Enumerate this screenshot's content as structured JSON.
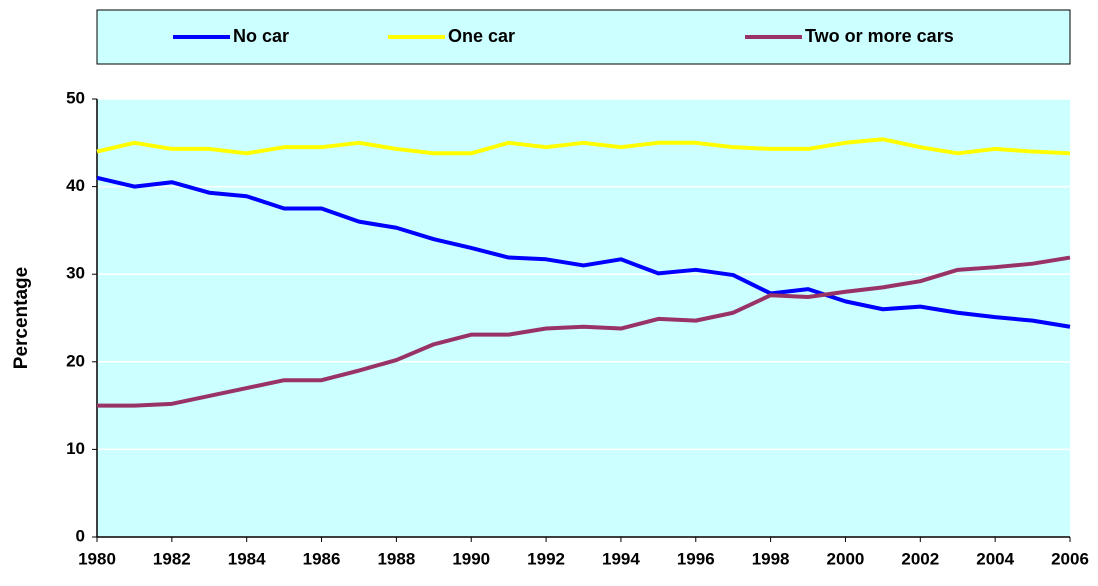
{
  "chart_data": {
    "type": "line",
    "y_label": "Percentage",
    "x": [
      1980,
      1981,
      1982,
      1983,
      1984,
      1985,
      1986,
      1987,
      1988,
      1989,
      1990,
      1991,
      1992,
      1993,
      1994,
      1995,
      1996,
      1997,
      1998,
      1999,
      2000,
      2001,
      2002,
      2003,
      2004,
      2005,
      2006
    ],
    "series": [
      {
        "name": "No car",
        "color": "#0000ff",
        "values": [
          41,
          40,
          40.5,
          39.3,
          38.9,
          37.5,
          37.5,
          36,
          35.3,
          34,
          33,
          31.9,
          31.7,
          31,
          31.7,
          30.1,
          30.5,
          29.9,
          27.8,
          28.3,
          26.9,
          26,
          26.3,
          25.6,
          25.1,
          24.7,
          24
        ]
      },
      {
        "name": "One car",
        "color": "#ffff00",
        "values": [
          44,
          45,
          44.3,
          44.3,
          43.8,
          44.5,
          44.5,
          45,
          44.3,
          43.8,
          43.8,
          45,
          44.5,
          45,
          44.5,
          45,
          45,
          44.5,
          44.3,
          44.3,
          45,
          45.4,
          44.5,
          43.8,
          44.3,
          44,
          43.8
        ]
      },
      {
        "name": "Two or more cars",
        "color": "#993366",
        "values": [
          15,
          15,
          15.2,
          16.1,
          17,
          17.9,
          17.9,
          19,
          20.2,
          22,
          23.1,
          23.1,
          23.8,
          24,
          23.8,
          24.9,
          24.7,
          25.6,
          27.6,
          27.4,
          28,
          28.5,
          29.2,
          30.5,
          30.8,
          31.2,
          31.9
        ]
      }
    ],
    "xlim": [
      1980,
      2006
    ],
    "xticks": [
      1980,
      1982,
      1984,
      1986,
      1988,
      1990,
      1992,
      1994,
      1996,
      1998,
      2000,
      2002,
      2004,
      2006
    ],
    "ylim": [
      0,
      50
    ],
    "yticks": [
      0,
      10,
      20,
      30,
      40,
      50
    ],
    "grid": true,
    "legend": "top",
    "background": "#ccffff"
  }
}
